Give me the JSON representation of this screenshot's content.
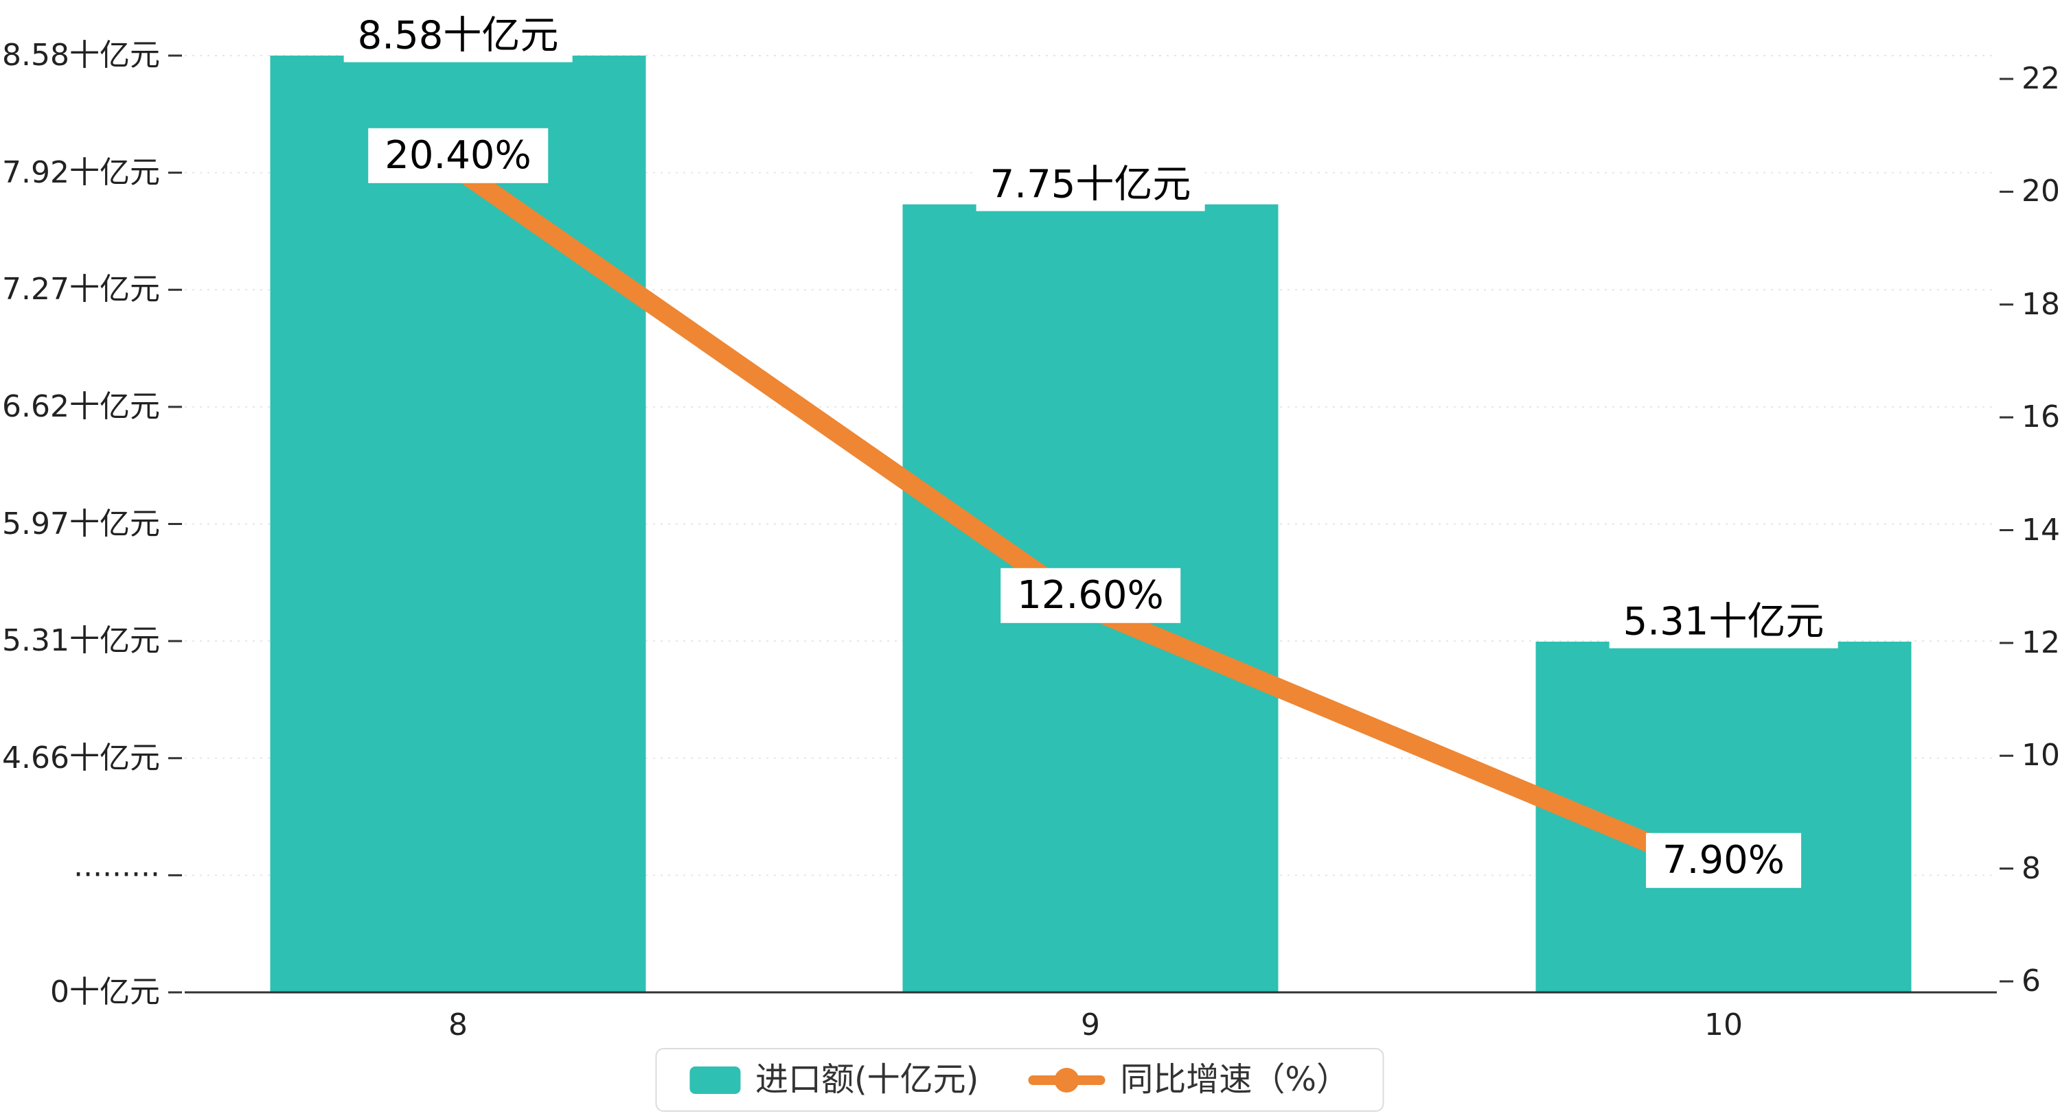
{
  "chart_data": {
    "type": "bar",
    "combo": "bar+line dual-axis",
    "categories": [
      "8",
      "9",
      "10"
    ],
    "series": [
      {
        "name": "进口额(十亿元)",
        "type": "bar",
        "axis": "left",
        "color": "#2ec0b2",
        "values": [
          8.58,
          7.75,
          5.31
        ],
        "labels": [
          "8.58十亿元",
          "7.75十亿元",
          "5.31十亿元"
        ]
      },
      {
        "name": "同比增速（%）",
        "type": "line",
        "axis": "right",
        "color": "#ee8633",
        "values": [
          20.4,
          12.6,
          7.9
        ],
        "labels": [
          "20.40%",
          "12.60%",
          "7.90%"
        ]
      }
    ],
    "left_axis": {
      "tick_labels": [
        "8.58十亿元",
        "7.92十亿元",
        "7.27十亿元",
        "6.62十亿元",
        "5.97十亿元",
        "5.31十亿元",
        "4.66十亿元",
        "·········",
        "0十亿元"
      ],
      "tick_values": [
        8.58,
        7.92,
        7.27,
        6.62,
        5.97,
        5.31,
        4.66,
        null,
        0
      ],
      "broken_axis": true
    },
    "right_axis": {
      "min": 6,
      "max": 22,
      "step": 2,
      "tick_labels": [
        "22",
        "20",
        "18",
        "16",
        "14",
        "12",
        "10",
        "8",
        "6"
      ]
    },
    "legend": {
      "position": "bottom-center",
      "items": [
        "进口额(十亿元)",
        "同比增速（%）"
      ]
    },
    "grid": "faint dashed horizontal lines",
    "background": "#ffffff"
  }
}
